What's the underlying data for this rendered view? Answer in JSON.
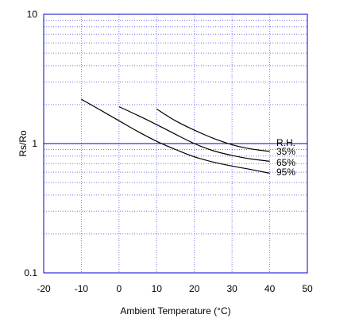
{
  "chart_data": {
    "type": "line",
    "title": "",
    "xlabel": "Ambient Temperature (°C)",
    "ylabel": "Rs/Ro",
    "xlim": [
      -20,
      50
    ],
    "ylim": [
      0.1,
      10
    ],
    "yscale": "log",
    "grid": true,
    "x_ticks": [
      "-20",
      "-10",
      "0",
      "10",
      "20",
      "30",
      "40",
      "50"
    ],
    "y_ticks": [
      "0.1",
      "1",
      "10"
    ],
    "reference_line_y": 1,
    "legend_title": "R.H.",
    "series": [
      {
        "name": "35%",
        "x": [
          10,
          15,
          20,
          25,
          30,
          35,
          40
        ],
        "y": [
          1.85,
          1.5,
          1.27,
          1.1,
          0.98,
          0.91,
          0.87
        ]
      },
      {
        "name": "65%",
        "x": [
          0,
          5,
          10,
          15,
          20,
          25,
          30,
          35,
          40
        ],
        "y": [
          1.93,
          1.65,
          1.4,
          1.18,
          1.0,
          0.88,
          0.81,
          0.76,
          0.73
        ]
      },
      {
        "name": "95%",
        "x": [
          -10,
          -5,
          0,
          5,
          10,
          15,
          20,
          25,
          30,
          35,
          40
        ],
        "y": [
          2.2,
          1.82,
          1.5,
          1.24,
          1.04,
          0.9,
          0.79,
          0.72,
          0.67,
          0.63,
          0.59
        ]
      }
    ]
  },
  "colors": {
    "axis": "#0000cc",
    "grid": "#7777ee",
    "curve": "#000000"
  }
}
